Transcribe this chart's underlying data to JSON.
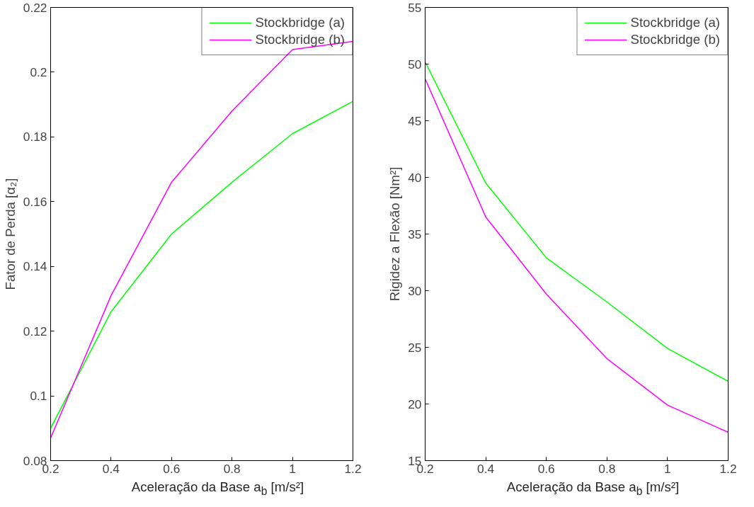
{
  "chart_data": [
    {
      "type": "line",
      "xlabel": "Aceleração da Base a$_{b}$ [m/s²]",
      "ylabel": "Fator de Perda [α₂]",
      "x": [
        0.2,
        0.4,
        0.6,
        0.8,
        1.0,
        1.2
      ],
      "xlim": [
        0.2,
        1.2
      ],
      "xticks": [
        0.2,
        0.4,
        0.6,
        0.8,
        {
          "value": 1.0,
          "label": "1"
        },
        1.2
      ],
      "ylim": [
        0.08,
        0.22
      ],
      "yticks": [
        0.08,
        {
          "value": 0.1,
          "label": "0.1"
        },
        0.12,
        0.14,
        0.16,
        0.18,
        {
          "value": 0.2,
          "label": "0.2"
        },
        0.22
      ],
      "grid": false,
      "legend": "top right",
      "marker": "none",
      "line_style": "solid",
      "series": [
        {
          "name": "Stockbridge (a)",
          "color": "#00ff00",
          "values": [
            0.09,
            0.126,
            0.15,
            0.166,
            0.181,
            0.191
          ]
        },
        {
          "name": "Stockbridge (b)",
          "color": "#ff00ff",
          "values": [
            0.087,
            0.131,
            0.166,
            0.188,
            0.207,
            0.2095
          ]
        }
      ]
    },
    {
      "type": "line",
      "xlabel": "Aceleração da Base a$_{b}$ [m/s²]",
      "ylabel": "Rigidez a Flexão [Nm²]",
      "x": [
        0.2,
        0.4,
        0.6,
        0.8,
        1.0,
        1.2
      ],
      "xlim": [
        0.2,
        1.2
      ],
      "xticks": [
        0.2,
        0.4,
        0.6,
        0.8,
        {
          "value": 1.0,
          "label": "1"
        },
        1.2
      ],
      "ylim": [
        15,
        55
      ],
      "yticks": [
        15,
        20,
        25,
        30,
        35,
        40,
        45,
        50,
        55
      ],
      "grid": false,
      "legend": "top right",
      "marker": "none",
      "line_style": "solid",
      "series": [
        {
          "name": "Stockbridge (a)",
          "color": "#00ff00",
          "values": [
            50.2,
            39.5,
            32.9,
            29.0,
            24.9,
            22.0
          ]
        },
        {
          "name": "Stockbridge (b)",
          "color": "#ff00ff",
          "values": [
            48.7,
            36.5,
            29.7,
            24.0,
            19.9,
            17.5
          ]
        }
      ]
    }
  ]
}
